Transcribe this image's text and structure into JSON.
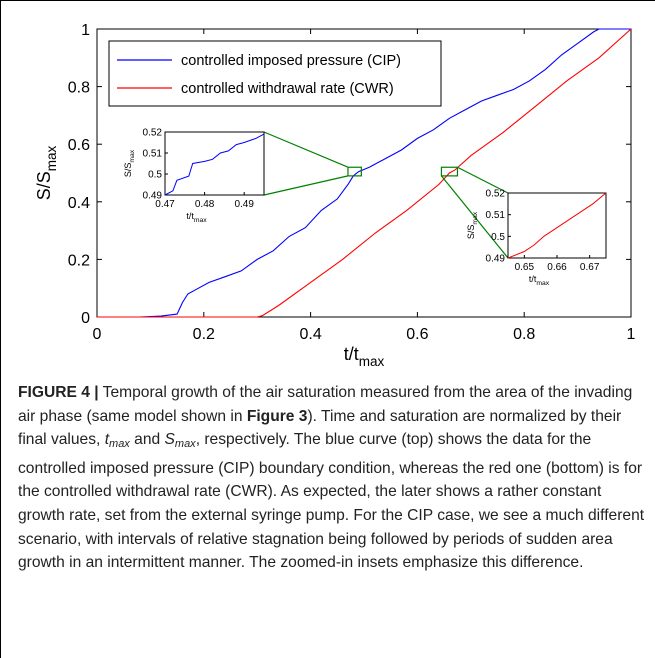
{
  "chart_data": {
    "type": "line",
    "title": "",
    "xlabel": "t/t",
    "xlabel_sub": "max",
    "ylabel": "S/S",
    "ylabel_sub": "max",
    "xlim": [
      0,
      1
    ],
    "ylim": [
      0,
      1
    ],
    "xticks": [
      "0",
      "0.2",
      "0.4",
      "0.6",
      "0.8",
      "1"
    ],
    "yticks": [
      "0",
      "0.2",
      "0.4",
      "0.6",
      "0.8",
      "1"
    ],
    "legend_position": "top-left",
    "series": [
      {
        "name": "controlled imposed pressure (CIP)",
        "color": "#0000ff",
        "x": [
          0,
          0.08,
          0.12,
          0.15,
          0.16,
          0.17,
          0.19,
          0.21,
          0.24,
          0.27,
          0.3,
          0.33,
          0.36,
          0.39,
          0.42,
          0.45,
          0.47,
          0.48,
          0.49,
          0.51,
          0.54,
          0.57,
          0.6,
          0.63,
          0.66,
          0.69,
          0.72,
          0.75,
          0.78,
          0.81,
          0.84,
          0.87,
          0.9,
          0.93,
          0.94,
          1
        ],
        "y": [
          0,
          0,
          0.003,
          0.01,
          0.05,
          0.08,
          0.1,
          0.12,
          0.14,
          0.16,
          0.2,
          0.23,
          0.28,
          0.31,
          0.37,
          0.41,
          0.46,
          0.49,
          0.505,
          0.52,
          0.55,
          0.58,
          0.62,
          0.65,
          0.69,
          0.72,
          0.75,
          0.77,
          0.79,
          0.82,
          0.86,
          0.91,
          0.95,
          0.99,
          1,
          1
        ]
      },
      {
        "name": "controlled withdrawal rate (CWR)",
        "color": "#ff0000",
        "x": [
          0,
          0.3,
          0.31,
          0.34,
          0.4,
          0.46,
          0.52,
          0.58,
          0.64,
          0.65,
          0.66,
          0.67,
          0.7,
          0.76,
          0.82,
          0.88,
          0.94,
          1
        ],
        "y": [
          0,
          0,
          0.005,
          0.04,
          0.12,
          0.2,
          0.29,
          0.37,
          0.46,
          0.48,
          0.5,
          0.51,
          0.56,
          0.64,
          0.73,
          0.82,
          0.9,
          1
        ]
      }
    ],
    "insets": [
      {
        "source_series": 0,
        "xlim": [
          0.47,
          0.495
        ],
        "ylim": [
          0.49,
          0.52
        ],
        "xticks": [
          "0.47",
          "0.48",
          "0.49"
        ],
        "yticks": [
          "0.49",
          "0.5",
          "0.51",
          "0.52"
        ],
        "xlabel": "t/t",
        "xlabel_sub": "max",
        "ylabel": "S/S",
        "ylabel_sub": "max",
        "x": [
          0.47,
          0.472,
          0.473,
          0.476,
          0.477,
          0.48,
          0.482,
          0.484,
          0.486,
          0.488,
          0.49,
          0.493,
          0.495
        ],
        "y": [
          0.49,
          0.492,
          0.497,
          0.499,
          0.505,
          0.506,
          0.507,
          0.51,
          0.511,
          0.514,
          0.515,
          0.517,
          0.519
        ]
      },
      {
        "source_series": 1,
        "xlim": [
          0.645,
          0.675
        ],
        "ylim": [
          0.49,
          0.52
        ],
        "xticks": [
          "0.65",
          "0.66",
          "0.67"
        ],
        "yticks": [
          "0.49",
          "0.5",
          "0.51",
          "0.52"
        ],
        "xlabel": "t/t",
        "xlabel_sub": "max",
        "ylabel": "S/S",
        "ylabel_sub": "max",
        "x": [
          0.645,
          0.65,
          0.653,
          0.656,
          0.659,
          0.662,
          0.665,
          0.668,
          0.671,
          0.675
        ],
        "y": [
          0.49,
          0.493,
          0.496,
          0.5,
          0.503,
          0.506,
          0.509,
          0.512,
          0.515,
          0.52
        ]
      }
    ]
  },
  "caption": {
    "label": "FIGURE 4 |",
    "p1": " Temporal growth of the air saturation measured from the area of the invading air phase (same model shown in ",
    "ref": "Figure 3",
    "p2": "). Time and saturation are normalized by their final values, ",
    "tvar": "t",
    "tsub": "max",
    "and": " and ",
    "svar": "S",
    "ssub": "max",
    "p3": ", respectively. The blue curve (top) shows the data for the controlled imposed pressure (CIP) boundary condition, whereas the red one (bottom) is for the controlled withdrawal rate (CWR). As expected, the later shows a rather constant growth rate, set from the external syringe pump. For the CIP case, we see a much different scenario, with intervals of relative stagnation being followed by periods of sudden area growth in an intermittent manner. The zoomed-in insets emphasize this difference."
  }
}
